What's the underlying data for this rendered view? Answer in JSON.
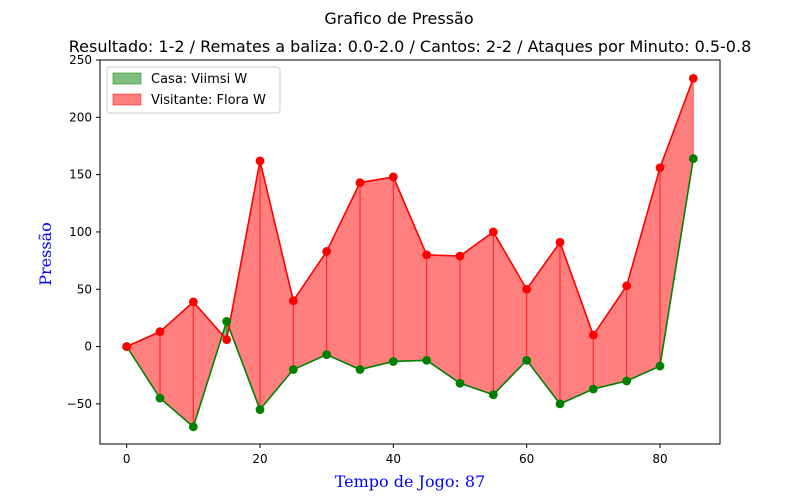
{
  "chart_data": {
    "type": "area",
    "title": "Grafico de Pressão",
    "subtitle": "Resultado: 1-2 / Remates a baliza: 0.0-2.0 / Cantos: 2-2 / Ataques por Minuto: 0.5-0.8",
    "xlabel": "Tempo de Jogo: 87",
    "ylabel": "Pressão",
    "xlim": [
      -4,
      89
    ],
    "ylim": [
      -85,
      250
    ],
    "xticks": [
      0,
      20,
      40,
      60,
      80
    ],
    "yticks": [
      -50,
      0,
      50,
      100,
      150,
      200,
      250
    ],
    "grid": false,
    "legend_position": "top-left",
    "x": [
      0,
      5,
      10,
      15,
      20,
      25,
      30,
      35,
      40,
      45,
      50,
      55,
      60,
      65,
      70,
      75,
      80,
      85
    ],
    "series": [
      {
        "name": "Casa: Viimsi W",
        "color": "#008000",
        "fill": "#008000",
        "values": [
          0,
          -45,
          -70,
          22,
          -55,
          -20,
          -7,
          -20,
          -13,
          -12,
          -32,
          -42,
          -12,
          -50,
          -37,
          -30,
          -17,
          164
        ]
      },
      {
        "name": "Visitante: Flora W",
        "color": "#ff0000",
        "fill": "#ff0000",
        "values": [
          0,
          13,
          39,
          6,
          162,
          40,
          83,
          143,
          148,
          80,
          79,
          100,
          50,
          91,
          10,
          53,
          156,
          234
        ]
      }
    ]
  }
}
